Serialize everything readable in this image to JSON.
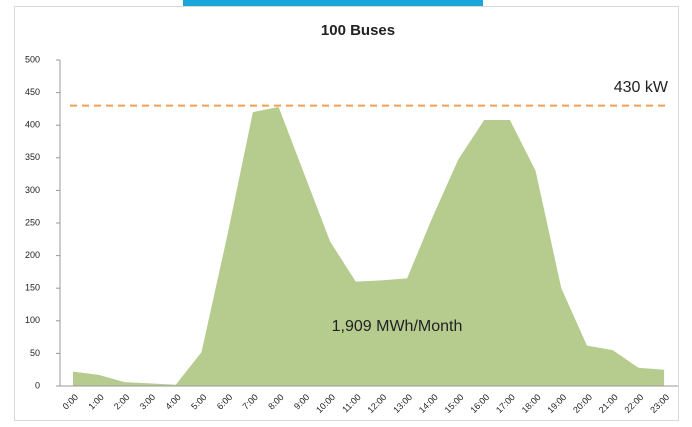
{
  "chart_data": {
    "type": "area",
    "title": "100 Buses",
    "categories": [
      "0:00",
      "1:00",
      "2:00",
      "3:00",
      "4:00",
      "5:00",
      "6:00",
      "7:00",
      "8:00",
      "9:00",
      "10:00",
      "11:00",
      "12:00",
      "13:00",
      "14:00",
      "15:00",
      "16:00",
      "17:00",
      "18:00",
      "19:00",
      "20:00",
      "21:00",
      "22:00",
      "23:00"
    ],
    "values": [
      22,
      17,
      6,
      4,
      2,
      52,
      230,
      420,
      428,
      325,
      222,
      160,
      162,
      165,
      260,
      348,
      408,
      408,
      330,
      150,
      62,
      55,
      28,
      25
    ],
    "color": "#b5cc8e",
    "ylim": [
      0,
      500
    ],
    "yticks": [
      0,
      50,
      100,
      150,
      200,
      250,
      300,
      350,
      400,
      450,
      500
    ],
    "reference_line": {
      "value": 430,
      "label": "430 kW",
      "color": "#f0a050"
    },
    "annotation": "1,909 MWh/Month"
  }
}
